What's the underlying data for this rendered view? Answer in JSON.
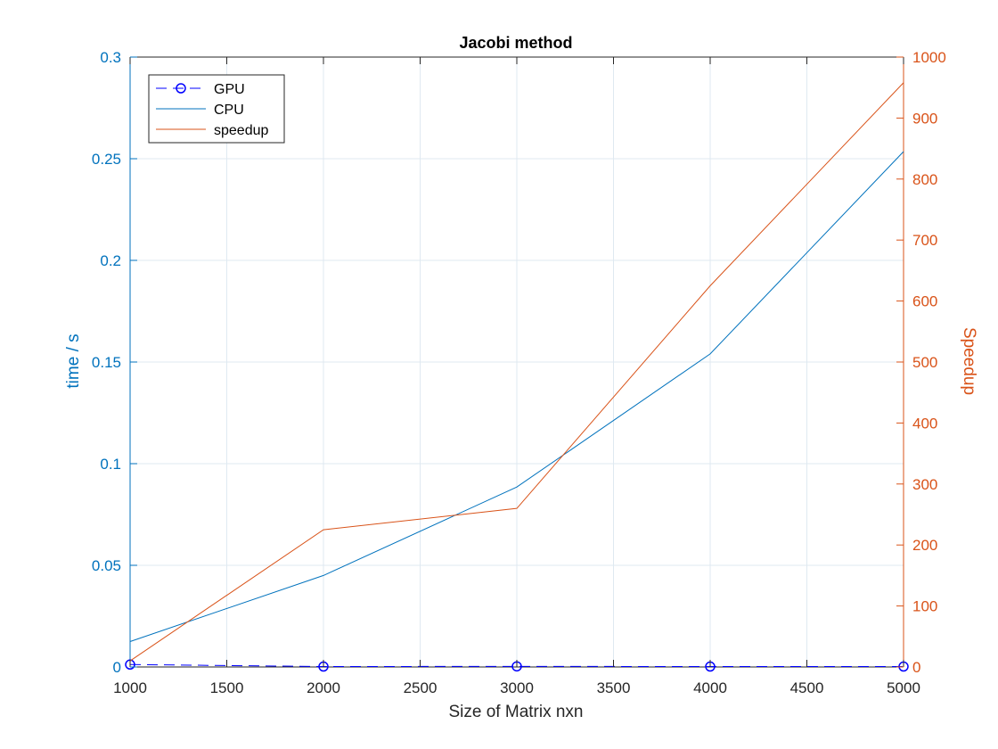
{
  "chart_data": {
    "type": "line",
    "title": "Jacobi method",
    "xlabel": "Size of Matrix nxn",
    "ylabel_left": "time / s",
    "ylabel_right": "Speedup",
    "xlim": [
      1000,
      5000
    ],
    "ylim_left": [
      0,
      0.3
    ],
    "ylim_right": [
      0,
      1000
    ],
    "x_ticks": [
      1000,
      1500,
      2000,
      2500,
      3000,
      3500,
      4000,
      4500,
      5000
    ],
    "x_tick_labels": [
      "1000",
      "1500",
      "2000",
      "2500",
      "3000",
      "3500",
      "4000",
      "4500",
      "5000"
    ],
    "y_left_ticks": [
      0,
      0.05,
      0.1,
      0.15,
      0.2,
      0.25,
      0.3
    ],
    "y_left_tick_labels": [
      "0",
      "0.05",
      "0.1",
      "0.15",
      "0.2",
      "0.25",
      "0.3"
    ],
    "y_right_ticks": [
      0,
      100,
      200,
      300,
      400,
      500,
      600,
      700,
      800,
      900,
      1000
    ],
    "y_right_tick_labels": [
      "0",
      "100",
      "200",
      "300",
      "400",
      "500",
      "600",
      "700",
      "800",
      "900",
      "1000"
    ],
    "grid": true,
    "legend_position": "top-left",
    "x": [
      1000,
      2000,
      3000,
      4000,
      5000
    ],
    "series": [
      {
        "name": "GPU",
        "axis": "left",
        "values": [
          0.0012,
          0.0002,
          0.0003,
          0.0002,
          0.0002
        ],
        "color": "#0000ff",
        "line_style": "dashed",
        "marker": "circle"
      },
      {
        "name": "CPU",
        "axis": "left",
        "values": [
          0.0125,
          0.045,
          0.0885,
          0.154,
          0.2535
        ],
        "color": "#0072bd",
        "line_style": "solid",
        "marker": "none"
      },
      {
        "name": "speedup",
        "axis": "right",
        "values": [
          10,
          225,
          260,
          625,
          958
        ],
        "color": "#d95319",
        "line_style": "solid",
        "marker": "none"
      }
    ],
    "colors": {
      "left_axis": "#0072bd",
      "right_axis": "#d95319",
      "grid": "#dfe9f1",
      "frame": "#262626"
    }
  }
}
